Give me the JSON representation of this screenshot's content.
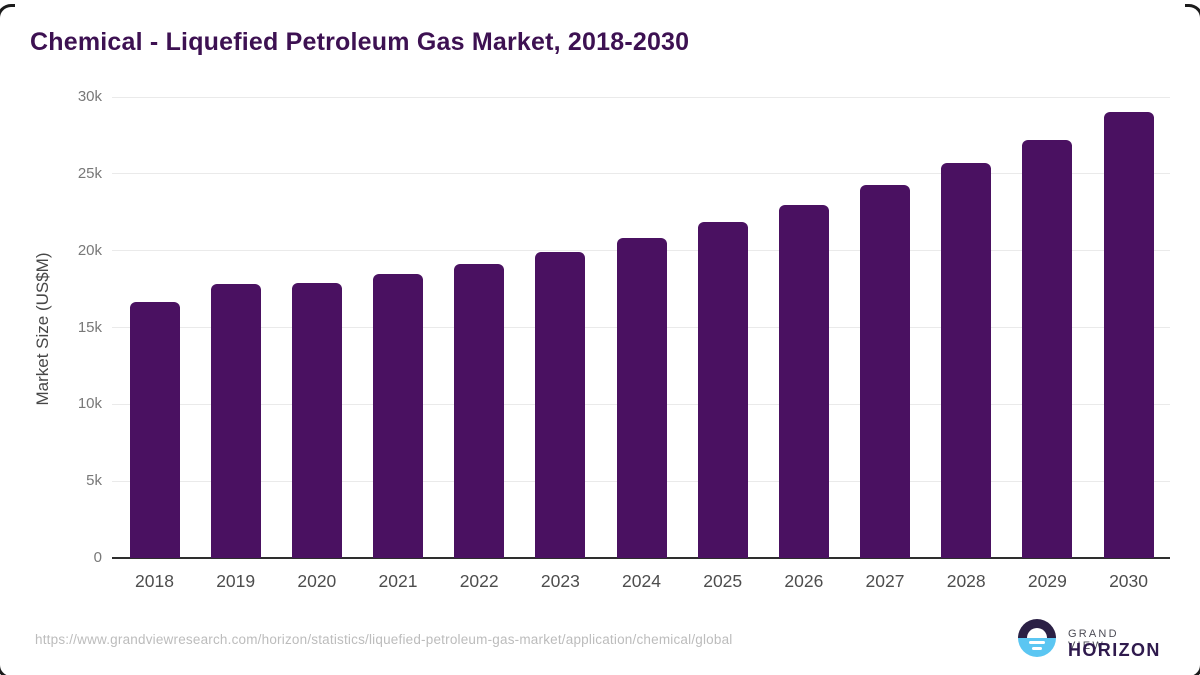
{
  "page": {
    "title": "Chemical - Liquefied Petroleum Gas Market, 2018-2030",
    "source_url": "https://www.grandviewresearch.com/horizon/statistics/liquefied-petroleum-gas-market/application/chemical/global",
    "logo": {
      "top_text": "GRAND VIEW",
      "bottom_text": "HORIZON"
    }
  },
  "chart_data": {
    "type": "bar",
    "title": "Chemical - Liquefied Petroleum Gas Market, 2018-2030",
    "categories": [
      "2018",
      "2019",
      "2020",
      "2021",
      "2022",
      "2023",
      "2024",
      "2025",
      "2026",
      "2027",
      "2028",
      "2029",
      "2030"
    ],
    "values": [
      16650,
      17800,
      17900,
      18450,
      19100,
      19900,
      20850,
      21850,
      23000,
      24300,
      25700,
      27200,
      29050
    ],
    "xlabel": "",
    "ylabel": "Market Size (US$M)",
    "ylim": [
      0,
      30000
    ],
    "yticks": [
      0,
      5000,
      10000,
      15000,
      20000,
      25000,
      30000
    ],
    "ytick_labels": [
      "0",
      "5k",
      "10k",
      "15k",
      "20k",
      "25k",
      "30k"
    ],
    "grid": true,
    "legend": false,
    "bar_color": "#4a1161"
  },
  "colors": {
    "background": "#ffffff",
    "title": "#3d1152",
    "bar": "#4a1161",
    "gridline": "#eaeaea",
    "axis_line": "#2e2e2e",
    "ytick_text": "#787878",
    "xtick_text": "#4d4d4d",
    "url_text": "#bcbcbc",
    "logo_dark": "#2b2045",
    "logo_blue": "#5bc6f2"
  }
}
